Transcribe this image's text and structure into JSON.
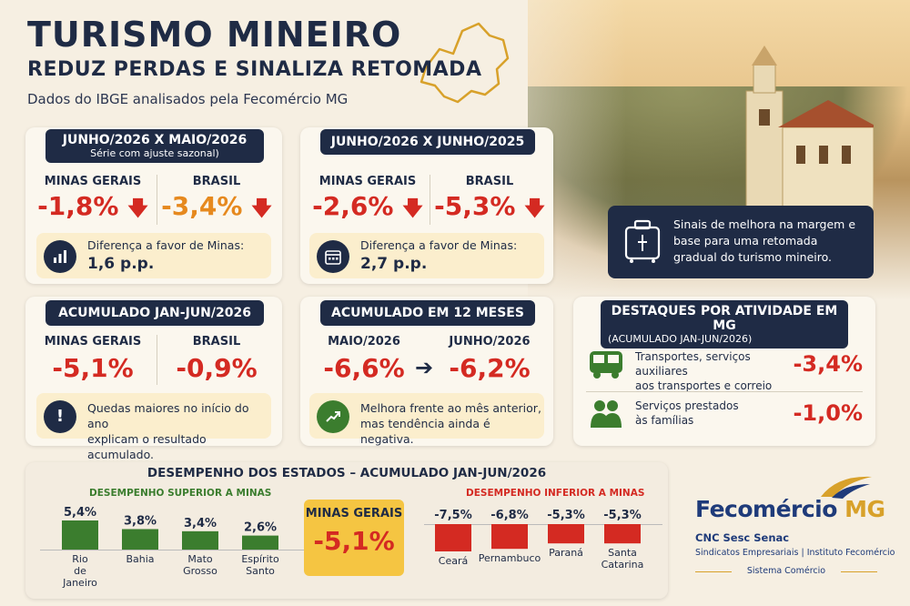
{
  "header": {
    "title": "TURISMO MINEIRO",
    "subtitle_line": "REDUZ PERDAS E SINALIZA RETOMADA",
    "source": "Dados do IBGE analisados pela Fecomércio MG"
  },
  "card1": {
    "title": "JUNHO/2026 X MAIO/2026",
    "subtitle": "Série com ajuste sazonal)",
    "left_label": "MINAS GERAIS",
    "left_value": "-1,8%",
    "right_label": "BRASIL",
    "right_value": "-3,4%",
    "note_text": "Diferença a favor de Minas:",
    "note_value": "1,6 p.p."
  },
  "card2": {
    "title": "JUNHO/2026 X JUNHO/2025",
    "left_label": "MINAS GERAIS",
    "left_value": "-2,6%",
    "right_label": "BRASIL",
    "right_value": "-5,3%",
    "note_text": "Diferença a favor de Minas:",
    "note_value": "2,7 p.p."
  },
  "callout": "Sinais de melhora na margem e base para uma retomada gradual do turismo mineiro.",
  "card3": {
    "title": "ACUMULADO JAN-JUN/2026",
    "left_label": "MINAS GERAIS",
    "left_value": "-5,1%",
    "right_label": "BRASIL",
    "right_value": "-0,9%",
    "note_line1": "Quedas maiores no início do ano",
    "note_line2": "explicam o resultado acumulado."
  },
  "card4": {
    "title": "ACUMULADO EM 12 MESES",
    "left_label": "MAIO/2026",
    "left_value": "-6,6%",
    "right_label": "JUNHO/2026",
    "right_value": "-6,2%",
    "note_line1": "Melhora frente ao mês anterior,",
    "note_line2": "mas tendência ainda é negativa."
  },
  "card5": {
    "title": "DESTAQUES POR ATIVIDADE EM MG",
    "subtitle": "(ACUMULADO JAN-JUN/2026)",
    "items": [
      {
        "line1": "Transportes, serviços auxiliares",
        "line2": "aos transportes e correio",
        "value": "-3,4%"
      },
      {
        "line1": "Serviços prestados",
        "line2": "às famílias",
        "value": "-1,0%"
      }
    ]
  },
  "states": {
    "title": "DESEMPENHO DOS ESTADOS – ACUMULADO JAN-JUN/2026",
    "superior_title": "DESEMPENHO SUPERIOR A MINAS",
    "inferior_title": "DESEMPENHO INFERIOR A MINAS",
    "minas_label": "MINAS GERAIS",
    "minas_value": "-5,1%"
  },
  "chart_data": [
    {
      "type": "bar",
      "title": "DESEMPENHO SUPERIOR A MINAS",
      "categories": [
        "Rio de Janeiro",
        "Bahia",
        "Mato Grosso",
        "Espírito Santo"
      ],
      "value_labels": [
        "5,4%",
        "3,8%",
        "3,4%",
        "2,6%"
      ],
      "values": [
        5.4,
        3.8,
        3.4,
        2.6
      ],
      "color": "#3b7d2e"
    },
    {
      "type": "bar",
      "title": "DESEMPENHO INFERIOR A MINAS",
      "categories": [
        "Ceará",
        "Pernambuco",
        "Paraná",
        "Santa Catarina"
      ],
      "value_labels": [
        "-7,5%",
        "-6,8%",
        "-5,3%",
        "-5,3%"
      ],
      "values": [
        -7.5,
        -6.8,
        -5.3,
        -5.3
      ],
      "color": "#d42a22"
    }
  ],
  "logo": {
    "name": "Fecomércio",
    "mg": "MG",
    "partners": "CNC  Sesc  Senac",
    "tagline": "Sindicatos Empresariais  |  Instituto Fecomércio",
    "system": "Sistema Comércio"
  },
  "colors": {
    "navy": "#1f2b45",
    "red": "#d42a22",
    "orange": "#e6891e",
    "green": "#3b7d2e",
    "yellow": "#f5c542"
  }
}
